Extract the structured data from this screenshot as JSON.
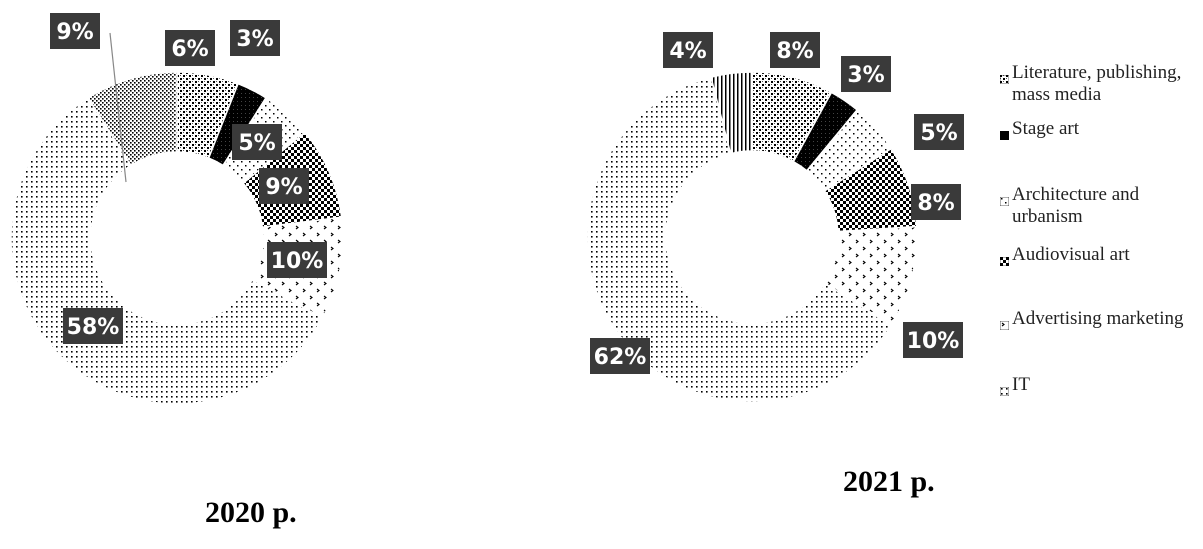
{
  "chart_data": [
    {
      "type": "pie",
      "title": "2020 р.",
      "categories": [
        "Literature, publishing, mass media",
        "Stage art",
        "Architecture and urbanism",
        "Audiovisual art",
        "Advertising marketing",
        "IT",
        ""
      ],
      "values": [
        6,
        3,
        5,
        9,
        10,
        58,
        9
      ],
      "labels": [
        "6%",
        "3%",
        "5%",
        "9%",
        "10%",
        "58%",
        "9%"
      ]
    },
    {
      "type": "pie",
      "title": "2021 р.",
      "categories": [
        "Literature, publishing, mass media",
        "Stage art",
        "Architecture and urbanism",
        "Audiovisual art",
        "Advertising marketing",
        "IT",
        ""
      ],
      "values": [
        8,
        3,
        5,
        8,
        10,
        62,
        4
      ],
      "labels": [
        "8%",
        "3%",
        "5%",
        "8%",
        "10%",
        "62%",
        "4%"
      ]
    }
  ],
  "legend": {
    "items": [
      {
        "label": "Literature, publishing, mass media",
        "pattern": "checker"
      },
      {
        "label": "Stage art",
        "pattern": "solid"
      },
      {
        "label": "Architecture and urbanism",
        "pattern": "sparse"
      },
      {
        "label": "Audiovisual art",
        "pattern": "bigcheck"
      },
      {
        "label": "Advertising marketing",
        "pattern": "arrows"
      },
      {
        "label": "IT",
        "pattern": "dots"
      }
    ]
  },
  "colors": {
    "label_bg": "#3a3a3a",
    "label_text": "#ffffff",
    "mark": "#000000"
  }
}
